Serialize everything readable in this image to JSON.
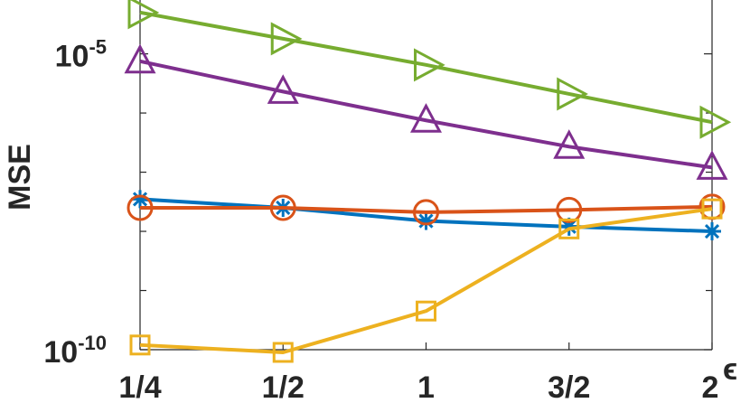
{
  "chart_data": {
    "type": "line",
    "xlabel": "ϵ",
    "ylabel": "MSE",
    "yscale": "log",
    "ylim": [
      1e-10,
      0.0001
    ],
    "grid": false,
    "categories": [
      "1/4",
      "1/2",
      "1",
      "3/2",
      "2"
    ],
    "yticks": [
      {
        "base": "10",
        "exp": "-10",
        "value": 1e-10
      },
      {
        "base": "10",
        "exp": "-5",
        "value": 1e-05
      }
    ],
    "series": [
      {
        "color": "#77AC30",
        "marker": "triangle-right",
        "values": [
          5e-05,
          1.8e-05,
          6.5e-06,
          2.1e-06,
          7e-07
        ]
      },
      {
        "color": "#7E2F8E",
        "marker": "triangle-up",
        "values": [
          7.5e-06,
          2.3e-06,
          7.5e-07,
          2.7e-07,
          1.2e-07
        ]
      },
      {
        "color": "#0072BD",
        "marker": "asterisk",
        "values": [
          3.5e-08,
          2.5e-08,
          1.5e-08,
          1.2e-08,
          1e-08
        ]
      },
      {
        "color": "#D95319",
        "marker": "circle",
        "values": [
          2.5e-08,
          2.5e-08,
          2.1e-08,
          2.3e-08,
          2.6e-08
        ]
      },
      {
        "color": "#EDB120",
        "marker": "square",
        "values": [
          1.2e-10,
          9e-11,
          4.5e-10,
          1.1e-08,
          2.4e-08
        ]
      }
    ]
  }
}
